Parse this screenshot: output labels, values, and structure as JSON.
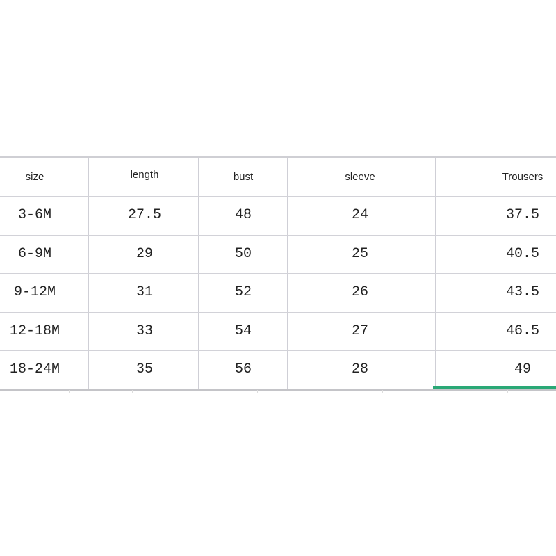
{
  "table": {
    "headers": [
      "size",
      "length",
      "bust",
      "sleeve",
      "Trousers"
    ],
    "rows": [
      [
        "3-6M",
        "27.5",
        "48",
        "24",
        "37.5"
      ],
      [
        "6-9M",
        "29",
        "50",
        "25",
        "40.5"
      ],
      [
        "9-12M",
        "31",
        "52",
        "26",
        "43.5"
      ],
      [
        "12-18M",
        "33",
        "54",
        "27",
        "46.5"
      ],
      [
        "18-24M",
        "35",
        "56",
        "28",
        "49"
      ]
    ]
  },
  "colors": {
    "selection": "#2aa876",
    "grid": "#cfcfd6"
  }
}
